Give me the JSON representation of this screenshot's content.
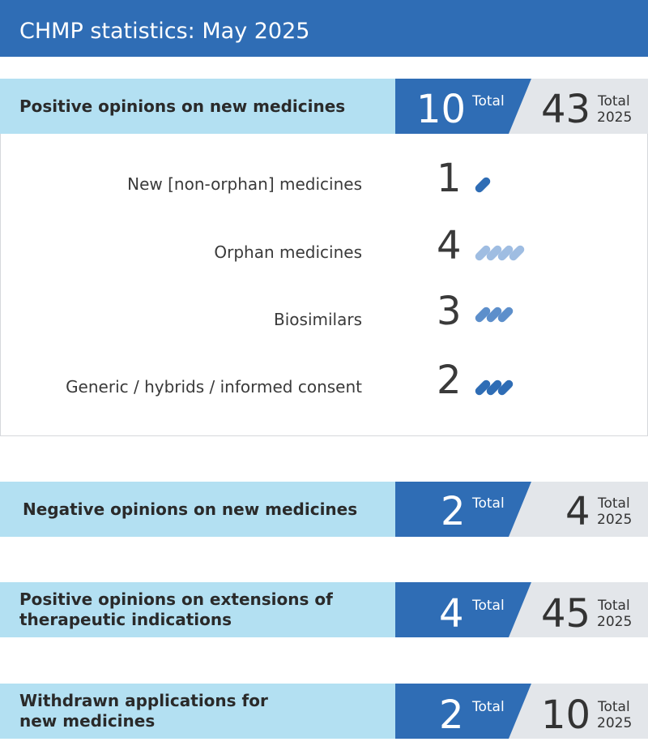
{
  "title": "CHMP statistics: May 2025",
  "total_label": "Total",
  "total_year_label": "2025",
  "sections": [
    {
      "label": "Positive opinions on new medicines",
      "total": "10",
      "year_total": "43"
    },
    {
      "label": "Negative opinions on new medicines",
      "total": "2",
      "year_total": "4"
    },
    {
      "label": "Positive opinions on extensions of therapeutic indications",
      "total": "4",
      "year_total": "45"
    },
    {
      "label": "Withdrawn applications for new medicines",
      "total": "2",
      "year_total": "10"
    }
  ],
  "breakdown": [
    {
      "label": "New [non-orphan] medicines",
      "count": "1",
      "pill_color": "#2f6db5"
    },
    {
      "label": "Orphan medicines",
      "count": "4",
      "pill_color": "#9fbde2"
    },
    {
      "label": "Biosimilars",
      "count": "3",
      "pill_color": "#5d8fcb"
    },
    {
      "label": "Generic / hybrids / informed consent",
      "count": "2",
      "pill_color": "#2f6db5"
    }
  ],
  "colors": {
    "header_blue": "#2f6db5",
    "band_light_blue": "#b3e0f2",
    "band_grey": "#e3e6ea"
  }
}
